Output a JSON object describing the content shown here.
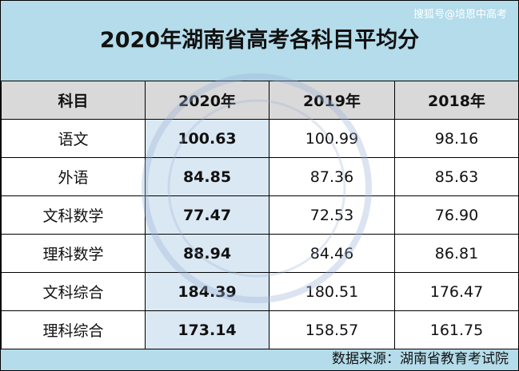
{
  "watermark": "搜狐号@培恩中高考",
  "header": {
    "title": "2020年湖南省高考各科目平均分"
  },
  "table": {
    "columns": [
      "科目",
      "2020年",
      "2019年",
      "2018年"
    ],
    "rows": [
      [
        "语文",
        "100.63",
        "100.99",
        "98.16"
      ],
      [
        "外语",
        "84.85",
        "87.36",
        "85.63"
      ],
      [
        "文科数学",
        "77.47",
        "72.53",
        "76.90"
      ],
      [
        "理科数学",
        "88.94",
        "84.46",
        "86.81"
      ],
      [
        "文科综合",
        "184.39",
        "180.51",
        "176.47"
      ],
      [
        "理科综合",
        "173.14",
        "158.57",
        "161.75"
      ]
    ]
  },
  "footer": {
    "source": "数据来源：湖南省教育考试院"
  }
}
